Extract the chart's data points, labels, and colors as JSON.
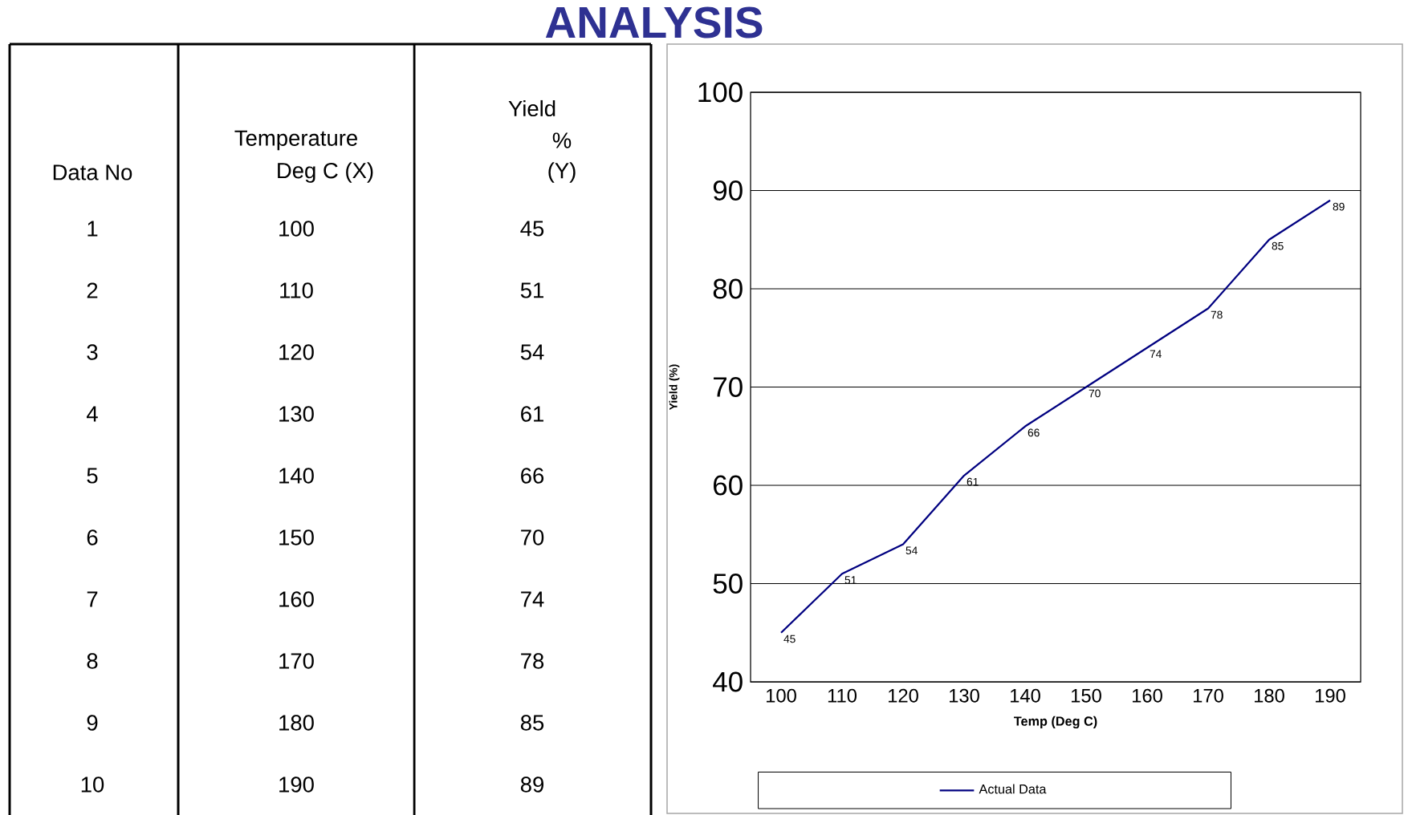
{
  "chart_data": {
    "type": "line",
    "title": "ANALYSIS",
    "xlabel": "Temp (Deg C)",
    "ylabel": "Yield (%)",
    "categories": [
      "100",
      "110",
      "120",
      "130",
      "140",
      "150",
      "160",
      "170",
      "180",
      "190"
    ],
    "series": [
      {
        "name": "Actual Data",
        "color": "#000080",
        "values": [
          45,
          51,
          54,
          61,
          66,
          70,
          74,
          78,
          85,
          89
        ]
      }
    ],
    "ylim": [
      40,
      100
    ],
    "yticks": [
      40,
      50,
      60,
      70,
      80,
      90,
      100
    ],
    "grid": "y",
    "legend": "bottom",
    "marker": "none",
    "line_style": "solid",
    "data_labels": true,
    "annotations": [
      "Data No",
      "Temperature",
      "Deg C (X)",
      "Yield",
      "%",
      "(Y)",
      "1",
      "100",
      "45",
      "2",
      "110",
      "51",
      "3",
      "120",
      "54",
      "4",
      "130",
      "61",
      "5",
      "140",
      "66",
      "6",
      "150",
      "70",
      "7",
      "160",
      "74",
      "8",
      "170",
      "78",
      "9",
      "180",
      "85",
      "10",
      "190",
      "89"
    ]
  }
}
